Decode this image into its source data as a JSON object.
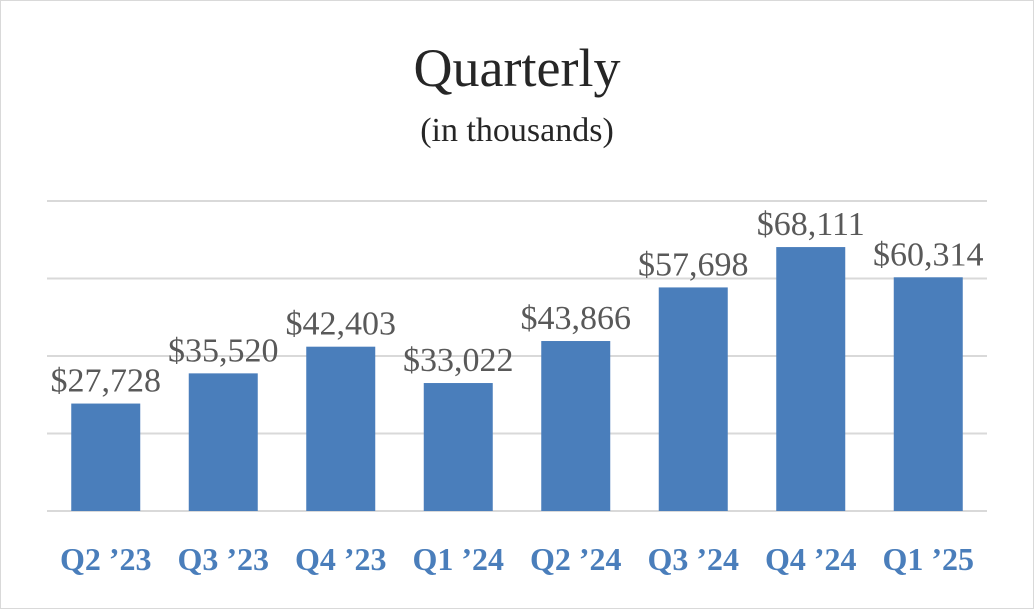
{
  "chart_data": {
    "type": "bar",
    "title": "Quarterly",
    "subtitle": "(in thousands)",
    "categories": [
      "Q2 ’23",
      "Q3 ’23",
      "Q4 ’23",
      "Q1 ’24",
      "Q2 ’24",
      "Q3 ’24",
      "Q4 ’24",
      "Q1 ’25"
    ],
    "series": [
      {
        "values": [
          27728,
          35520,
          42403,
          33022,
          43866,
          57698,
          68111,
          60314
        ],
        "data_labels": [
          "$27,728",
          "$35,520",
          "$42,403",
          "$33,022",
          "$43,866",
          "$57,698",
          "$68,111",
          "$60,314"
        ]
      }
    ],
    "ylim": [
      0,
      80000
    ],
    "grid": true,
    "legend": "none",
    "colors": {
      "bar": "#4a7ebb",
      "grid": "#d9d9d9",
      "tick_label": "#4a7ebb",
      "data_label": "#595959"
    }
  }
}
